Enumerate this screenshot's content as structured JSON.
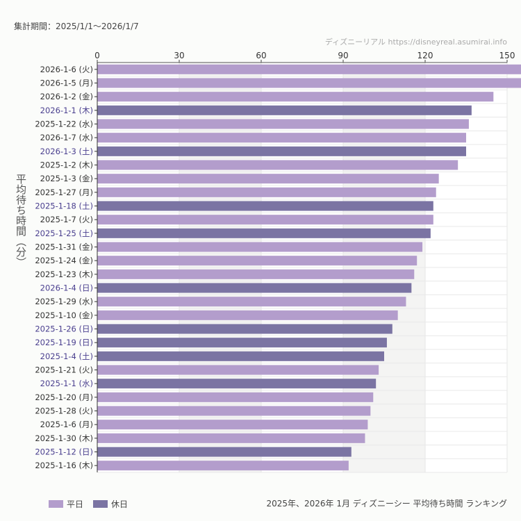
{
  "period": "集計期間：2025/1/1～2026/1/7",
  "credit": "ディズニーリアル https://disneyreal.asumirai.info",
  "chart_data": {
    "type": "bar",
    "orientation": "horizontal",
    "title": "2025年、2026年 1月 ディズニーシー 平均待ち時間 ランキング",
    "ylabel": "平均待ち時間（分）",
    "xlim": [
      0,
      150
    ],
    "xticks": [
      0,
      30,
      60,
      90,
      120,
      150
    ],
    "grid": true,
    "legend_position": "bottom-left",
    "legend": [
      {
        "name": "平日",
        "color": "#b39dcc"
      },
      {
        "name": "休日",
        "color": "#7b74a3"
      }
    ],
    "holiday_label_color": "#4a3f8f",
    "categories": [
      "2026-1-6 (火)",
      "2026-1-5 (月)",
      "2026-1-2 (金)",
      "2026-1-1 (木)",
      "2025-1-22 (水)",
      "2026-1-7 (水)",
      "2026-1-3 (土)",
      "2025-1-2 (木)",
      "2025-1-3 (金)",
      "2025-1-27 (月)",
      "2025-1-18 (土)",
      "2025-1-7 (火)",
      "2025-1-25 (土)",
      "2025-1-31 (金)",
      "2025-1-24 (金)",
      "2025-1-23 (木)",
      "2026-1-4 (日)",
      "2025-1-29 (水)",
      "2025-1-10 (金)",
      "2025-1-26 (日)",
      "2025-1-19 (日)",
      "2025-1-4 (土)",
      "2025-1-21 (火)",
      "2025-1-1 (水)",
      "2025-1-20 (月)",
      "2025-1-28 (火)",
      "2025-1-6 (月)",
      "2025-1-30 (木)",
      "2025-1-12 (日)",
      "2025-1-16 (木)"
    ],
    "values": [
      158,
      156,
      145,
      137,
      136,
      135,
      135,
      132,
      125,
      124,
      123,
      123,
      122,
      119,
      117,
      116,
      115,
      113,
      110,
      108,
      106,
      105,
      103,
      102,
      101,
      100,
      99,
      98,
      93,
      92
    ],
    "holiday": [
      false,
      false,
      false,
      true,
      false,
      false,
      true,
      false,
      false,
      false,
      true,
      false,
      true,
      false,
      false,
      false,
      true,
      false,
      false,
      true,
      true,
      true,
      false,
      true,
      false,
      false,
      false,
      false,
      true,
      false
    ]
  }
}
